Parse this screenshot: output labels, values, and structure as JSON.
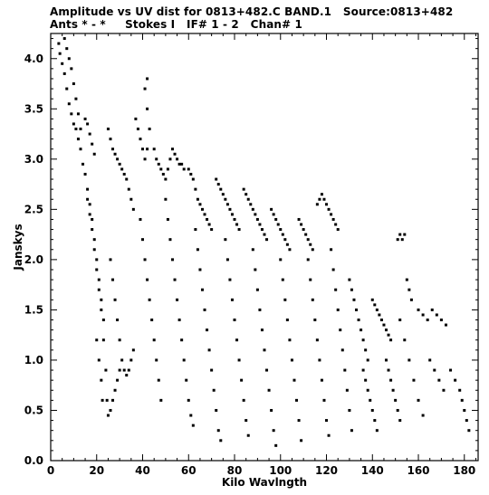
{
  "header": {
    "line1": "Amplitude vs UV dist for 0813+482.C BAND.1   Source:0813+482",
    "line2": "Ants * - *     Stokes I   IF# 1 - 2   Chan# 1"
  },
  "chart_data": {
    "type": "scatter",
    "xlabel": "Kilo Wavlngth",
    "ylabel": "Janskys",
    "xlim": [
      0,
      186
    ],
    "ylim": [
      0.0,
      4.25
    ],
    "xticks": [
      0,
      20,
      40,
      60,
      80,
      100,
      120,
      140,
      160,
      180
    ],
    "yticks": [
      0.0,
      0.5,
      1.0,
      1.5,
      2.0,
      2.5,
      3.0,
      3.5,
      4.0
    ],
    "xtick_labels": [
      "0",
      "20",
      "40",
      "60",
      "80",
      "100",
      "120",
      "140",
      "160",
      "180"
    ],
    "ytick_labels": [
      "0.0",
      "0.5",
      "1.0",
      "1.5",
      "2.0",
      "2.5",
      "3.0",
      "3.5",
      "4.0"
    ],
    "grid": false,
    "marker_color": "#000000",
    "series": [
      {
        "points": [
          [
            3.5,
            4.15
          ],
          [
            4,
            4.05
          ],
          [
            5,
            3.95
          ],
          [
            6,
            3.85
          ],
          [
            7,
            3.7
          ],
          [
            8,
            3.55
          ],
          [
            9,
            3.45
          ],
          [
            10,
            3.35
          ],
          [
            11,
            3.3
          ],
          [
            12,
            3.2
          ],
          [
            13,
            3.1
          ],
          [
            14,
            2.95
          ],
          [
            15,
            2.85
          ],
          [
            16,
            2.7
          ],
          [
            17,
            2.55
          ],
          [
            18,
            2.4
          ],
          [
            19,
            2.2
          ],
          [
            20,
            2.0
          ],
          [
            21,
            1.8
          ],
          [
            22,
            1.6
          ],
          [
            23,
            1.4
          ],
          [
            6,
            4.2
          ],
          [
            7,
            4.1
          ],
          [
            8,
            4.0
          ],
          [
            9,
            3.9
          ],
          [
            10,
            3.75
          ],
          [
            11,
            3.6
          ],
          [
            12,
            3.45
          ],
          [
            13,
            3.3
          ],
          [
            15,
            3.4
          ],
          [
            16,
            3.35
          ],
          [
            17,
            3.25
          ],
          [
            18,
            3.15
          ],
          [
            19,
            3.05
          ],
          [
            16,
            2.6
          ],
          [
            17,
            2.45
          ],
          [
            18,
            2.3
          ],
          [
            19,
            2.1
          ],
          [
            20,
            1.9
          ],
          [
            21,
            1.7
          ],
          [
            22,
            1.5
          ],
          [
            23,
            1.2
          ],
          [
            24,
            0.9
          ],
          [
            24.5,
            0.6
          ],
          [
            25,
            0.45
          ],
          [
            26,
            0.5
          ],
          [
            27,
            0.6
          ],
          [
            28,
            0.7
          ],
          [
            29,
            0.8
          ],
          [
            30,
            0.9
          ],
          [
            20,
            1.2
          ],
          [
            21,
            1.0
          ],
          [
            22,
            0.8
          ],
          [
            22.5,
            0.6
          ],
          [
            25,
            3.3
          ],
          [
            26,
            3.2
          ],
          [
            27,
            3.1
          ],
          [
            28,
            3.05
          ],
          [
            29,
            3.0
          ],
          [
            30,
            2.95
          ],
          [
            31,
            2.9
          ],
          [
            32,
            2.85
          ],
          [
            33,
            2.8
          ],
          [
            34,
            2.7
          ],
          [
            35,
            2.6
          ],
          [
            36,
            2.5
          ],
          [
            26,
            2.0
          ],
          [
            27,
            1.8
          ],
          [
            28,
            1.6
          ],
          [
            29,
            1.4
          ],
          [
            30,
            1.2
          ],
          [
            31,
            1.0
          ],
          [
            32,
            0.9
          ],
          [
            33,
            0.85
          ],
          [
            34,
            0.9
          ],
          [
            35,
            1.0
          ],
          [
            36,
            1.1
          ],
          [
            37,
            3.4
          ],
          [
            38,
            3.3
          ],
          [
            39,
            3.2
          ],
          [
            40,
            3.1
          ],
          [
            41,
            3.0
          ],
          [
            42,
            3.1
          ],
          [
            43,
            3.3
          ],
          [
            42,
            3.5
          ],
          [
            41,
            3.7
          ],
          [
            42,
            3.8
          ],
          [
            39,
            2.4
          ],
          [
            40,
            2.2
          ],
          [
            41,
            2.0
          ],
          [
            42,
            1.8
          ],
          [
            43,
            1.6
          ],
          [
            44,
            1.4
          ],
          [
            45,
            1.2
          ],
          [
            46,
            1.0
          ],
          [
            47,
            0.8
          ],
          [
            48,
            0.6
          ],
          [
            45,
            3.1
          ],
          [
            46,
            3.0
          ],
          [
            47,
            2.95
          ],
          [
            48,
            2.9
          ],
          [
            49,
            2.85
          ],
          [
            50,
            2.8
          ],
          [
            51,
            2.9
          ],
          [
            52,
            3.0
          ],
          [
            53,
            3.1
          ],
          [
            54,
            3.05
          ],
          [
            55,
            3.0
          ],
          [
            56,
            2.95
          ],
          [
            57,
            2.95
          ],
          [
            58,
            2.9
          ],
          [
            50,
            2.6
          ],
          [
            51,
            2.4
          ],
          [
            52,
            2.2
          ],
          [
            53,
            2.0
          ],
          [
            54,
            1.8
          ],
          [
            55,
            1.6
          ],
          [
            56,
            1.4
          ],
          [
            57,
            1.2
          ],
          [
            58,
            1.0
          ],
          [
            59,
            0.8
          ],
          [
            60,
            0.6
          ],
          [
            61,
            0.45
          ],
          [
            62,
            0.35
          ],
          [
            60,
            2.9
          ],
          [
            61,
            2.85
          ],
          [
            62,
            2.8
          ],
          [
            63,
            2.7
          ],
          [
            64,
            2.6
          ],
          [
            65,
            2.55
          ],
          [
            66,
            2.5
          ],
          [
            67,
            2.45
          ],
          [
            68,
            2.4
          ],
          [
            69,
            2.35
          ],
          [
            70,
            2.3
          ],
          [
            63,
            2.3
          ],
          [
            64,
            2.1
          ],
          [
            65,
            1.9
          ],
          [
            66,
            1.7
          ],
          [
            67,
            1.5
          ],
          [
            68,
            1.3
          ],
          [
            69,
            1.1
          ],
          [
            70,
            0.9
          ],
          [
            71,
            0.7
          ],
          [
            72,
            0.5
          ],
          [
            73,
            0.3
          ],
          [
            74,
            0.2
          ],
          [
            72,
            2.8
          ],
          [
            73,
            2.75
          ],
          [
            74,
            2.7
          ],
          [
            75,
            2.65
          ],
          [
            76,
            2.6
          ],
          [
            77,
            2.55
          ],
          [
            78,
            2.5
          ],
          [
            79,
            2.45
          ],
          [
            80,
            2.4
          ],
          [
            81,
            2.35
          ],
          [
            82,
            2.3
          ],
          [
            76,
            2.2
          ],
          [
            77,
            2.0
          ],
          [
            78,
            1.8
          ],
          [
            79,
            1.6
          ],
          [
            80,
            1.4
          ],
          [
            81,
            1.2
          ],
          [
            82,
            1.0
          ],
          [
            83,
            0.8
          ],
          [
            84,
            0.6
          ],
          [
            85,
            0.4
          ],
          [
            86,
            0.25
          ],
          [
            84,
            2.7
          ],
          [
            85,
            2.65
          ],
          [
            86,
            2.6
          ],
          [
            87,
            2.55
          ],
          [
            88,
            2.5
          ],
          [
            89,
            2.45
          ],
          [
            90,
            2.4
          ],
          [
            91,
            2.35
          ],
          [
            92,
            2.3
          ],
          [
            93,
            2.25
          ],
          [
            94,
            2.2
          ],
          [
            88,
            2.1
          ],
          [
            89,
            1.9
          ],
          [
            90,
            1.7
          ],
          [
            91,
            1.5
          ],
          [
            92,
            1.3
          ],
          [
            93,
            1.1
          ],
          [
            94,
            0.9
          ],
          [
            95,
            0.7
          ],
          [
            96,
            0.5
          ],
          [
            97,
            0.3
          ],
          [
            98,
            0.15
          ],
          [
            96,
            2.5
          ],
          [
            97,
            2.45
          ],
          [
            98,
            2.4
          ],
          [
            99,
            2.35
          ],
          [
            100,
            2.3
          ],
          [
            101,
            2.25
          ],
          [
            102,
            2.2
          ],
          [
            103,
            2.15
          ],
          [
            104,
            2.1
          ],
          [
            100,
            2.0
          ],
          [
            101,
            1.8
          ],
          [
            102,
            1.6
          ],
          [
            103,
            1.4
          ],
          [
            104,
            1.2
          ],
          [
            105,
            1.0
          ],
          [
            106,
            0.8
          ],
          [
            107,
            0.6
          ],
          [
            108,
            0.4
          ],
          [
            109,
            0.2
          ],
          [
            108,
            2.4
          ],
          [
            109,
            2.35
          ],
          [
            110,
            2.3
          ],
          [
            111,
            2.25
          ],
          [
            112,
            2.2
          ],
          [
            113,
            2.15
          ],
          [
            114,
            2.1
          ],
          [
            112,
            2.0
          ],
          [
            113,
            1.8
          ],
          [
            114,
            1.6
          ],
          [
            115,
            1.4
          ],
          [
            116,
            1.2
          ],
          [
            117,
            1.0
          ],
          [
            118,
            0.8
          ],
          [
            119,
            0.6
          ],
          [
            120,
            0.4
          ],
          [
            121,
            0.25
          ],
          [
            116,
            2.55
          ],
          [
            117,
            2.6
          ],
          [
            118,
            2.65
          ],
          [
            119,
            2.6
          ],
          [
            120,
            2.55
          ],
          [
            121,
            2.5
          ],
          [
            122,
            2.45
          ],
          [
            123,
            2.4
          ],
          [
            124,
            2.35
          ],
          [
            125,
            2.3
          ],
          [
            122,
            2.1
          ],
          [
            123,
            1.9
          ],
          [
            124,
            1.7
          ],
          [
            125,
            1.5
          ],
          [
            126,
            1.3
          ],
          [
            127,
            1.1
          ],
          [
            128,
            0.9
          ],
          [
            129,
            0.7
          ],
          [
            130,
            0.5
          ],
          [
            131,
            0.3
          ],
          [
            130,
            1.8
          ],
          [
            131,
            1.7
          ],
          [
            132,
            1.6
          ],
          [
            133,
            1.5
          ],
          [
            134,
            1.4
          ],
          [
            135,
            1.3
          ],
          [
            136,
            1.2
          ],
          [
            137,
            1.1
          ],
          [
            138,
            1.0
          ],
          [
            136,
            0.9
          ],
          [
            137,
            0.8
          ],
          [
            138,
            0.7
          ],
          [
            139,
            0.6
          ],
          [
            140,
            0.5
          ],
          [
            141,
            0.4
          ],
          [
            142,
            0.3
          ],
          [
            140,
            1.6
          ],
          [
            141,
            1.55
          ],
          [
            142,
            1.5
          ],
          [
            143,
            1.45
          ],
          [
            144,
            1.4
          ],
          [
            145,
            1.35
          ],
          [
            146,
            1.3
          ],
          [
            147,
            1.25
          ],
          [
            148,
            1.2
          ],
          [
            146,
            1.0
          ],
          [
            147,
            0.9
          ],
          [
            148,
            0.8
          ],
          [
            149,
            0.7
          ],
          [
            150,
            0.6
          ],
          [
            151,
            0.5
          ],
          [
            152,
            0.4
          ],
          [
            151,
            2.2
          ],
          [
            152,
            2.25
          ],
          [
            153,
            2.2
          ],
          [
            154,
            2.25
          ],
          [
            155,
            1.8
          ],
          [
            156,
            1.7
          ],
          [
            157,
            1.6
          ],
          [
            152,
            1.4
          ],
          [
            154,
            1.2
          ],
          [
            156,
            1.0
          ],
          [
            158,
            0.8
          ],
          [
            160,
            0.6
          ],
          [
            162,
            0.45
          ],
          [
            160,
            1.5
          ],
          [
            162,
            1.45
          ],
          [
            164,
            1.4
          ],
          [
            166,
            1.5
          ],
          [
            168,
            1.45
          ],
          [
            170,
            1.4
          ],
          [
            172,
            1.35
          ],
          [
            165,
            1.0
          ],
          [
            167,
            0.9
          ],
          [
            169,
            0.8
          ],
          [
            171,
            0.7
          ],
          [
            174,
            0.9
          ],
          [
            176,
            0.8
          ],
          [
            178,
            0.7
          ],
          [
            179,
            0.6
          ],
          [
            180,
            0.5
          ],
          [
            181,
            0.4
          ],
          [
            182,
            0.3
          ]
        ]
      }
    ]
  }
}
